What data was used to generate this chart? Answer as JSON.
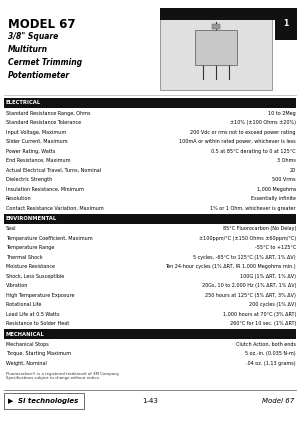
{
  "title": "MODEL 67",
  "subtitle_lines": [
    "3/8\" Square",
    "Multiturn",
    "Cermet Trimming",
    "Potentiometer"
  ],
  "page_number": "1",
  "bg_color": "#ffffff",
  "section_bar_color": "#111111",
  "section_text_color": "#ffffff",
  "sections": [
    {
      "name": "ELECTRICAL",
      "rows": [
        [
          "Standard Resistance Range, Ohms",
          "10 to 2Meg"
        ],
        [
          "Standard Resistance Tolerance",
          "±10% (±100 Ohms ±20%)"
        ],
        [
          "Input Voltage, Maximum",
          "200 Vdc or rms not to exceed power rating"
        ],
        [
          "Slider Current, Maximum",
          "100mA or within rated power, whichever is less"
        ],
        [
          "Power Rating, Watts",
          "0.5 at 85°C derating to 0 at 125°C"
        ],
        [
          "End Resistance, Maximum",
          "3 Ohms"
        ],
        [
          "Actual Electrical Travel, Turns, Nominal",
          "20"
        ],
        [
          "Dielectric Strength",
          "500 Vrms"
        ],
        [
          "Insulation Resistance, Minimum",
          "1,000 Megohms"
        ],
        [
          "Resolution",
          "Essentially infinite"
        ],
        [
          "Contact Resistance Variation, Maximum",
          "1% or 1 Ohm, whichever is greater"
        ]
      ]
    },
    {
      "name": "ENVIRONMENTAL",
      "rows": [
        [
          "Seal",
          "85°C Fluorocarbon (No Delay)"
        ],
        [
          "Temperature Coefficient, Maximum",
          "±100ppm/°C (±150 Ohms ±60ppm/°C)"
        ],
        [
          "Temperature Range",
          "-55°C to +125°C"
        ],
        [
          "Thermal Shock",
          "5 cycles, -65°C to 125°C (1% ΔRT, 1% ΔV)"
        ],
        [
          "Moisture Resistance",
          "Ten 24-hour cycles (1% ΔRT, IR 1,000 Megohms min.)"
        ],
        [
          "Shock, Less Susceptible",
          "100G (1% ΔRT, 1% ΔV)"
        ],
        [
          "Vibration",
          "20Gs, 10 to 2,000 Hz (1% ΔRT, 1% ΔV)"
        ],
        [
          "High Temperature Exposure",
          "250 hours at 125°C (5% ΔRT, 3% ΔV)"
        ],
        [
          "Rotational Life",
          "200 cycles (1% ΔV)"
        ],
        [
          "Load Life at 0.5 Watts",
          "1,000 hours at 70°C (3% ΔRT)"
        ],
        [
          "Resistance to Solder Heat",
          "260°C for 10 sec. (1% ΔRT)"
        ]
      ]
    },
    {
      "name": "MECHANICAL",
      "rows": [
        [
          "Mechanical Stops",
          "Clutch Action, both ends"
        ],
        [
          "Torque, Starting Maximum",
          "5 oz.-in. (0.035 N-m)"
        ],
        [
          "Weight, Nominal",
          ".04 oz. (1.13 grams)"
        ]
      ]
    }
  ],
  "footer_logo_text": "Si technologies",
  "footer_center": "1-43",
  "footer_right": "Model 67",
  "small_note1": "Fluorocarbon® is a registered trademark of 3M Company.",
  "small_note2": "Specifications subject to change without notice.",
  "header_bar_color": "#111111",
  "tab_color": "#111111"
}
